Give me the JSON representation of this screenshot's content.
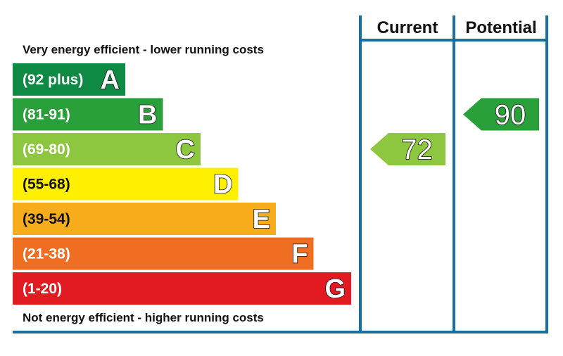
{
  "header": {
    "current": "Current",
    "potential": "Potential"
  },
  "top_caption": "Very energy efficient - lower running costs",
  "bottom_caption": "Not energy efficient - higher running costs",
  "colors": {
    "frame": "#1b6f9c",
    "A": "#0f8a44",
    "B": "#2aa03a",
    "C": "#8dc63f",
    "D": "#ffef00",
    "E": "#f7ac1c",
    "F": "#ef6e22",
    "G": "#e21b23"
  },
  "chart_data": {
    "type": "bar",
    "bands": [
      {
        "letter": "A",
        "range": "(92 plus)",
        "min": 92,
        "max": null,
        "color": "#0f8a44",
        "text": "light"
      },
      {
        "letter": "B",
        "range": "(81-91)",
        "min": 81,
        "max": 91,
        "color": "#2aa03a",
        "text": "light"
      },
      {
        "letter": "C",
        "range": "(69-80)",
        "min": 69,
        "max": 80,
        "color": "#8dc63f",
        "text": "light"
      },
      {
        "letter": "D",
        "range": "(55-68)",
        "min": 55,
        "max": 68,
        "color": "#ffef00",
        "text": "dark"
      },
      {
        "letter": "E",
        "range": "(39-54)",
        "min": 39,
        "max": 54,
        "color": "#f7ac1c",
        "text": "dark"
      },
      {
        "letter": "F",
        "range": "(21-38)",
        "min": 21,
        "max": 38,
        "color": "#ef6e22",
        "text": "light"
      },
      {
        "letter": "G",
        "range": "(1-20)",
        "min": 1,
        "max": 20,
        "color": "#e21b23",
        "text": "light"
      }
    ],
    "ratings": {
      "current": {
        "value": 72,
        "band": "C",
        "color": "#8dc63f"
      },
      "potential": {
        "value": 90,
        "band": "B",
        "color": "#2aa03a"
      }
    }
  }
}
